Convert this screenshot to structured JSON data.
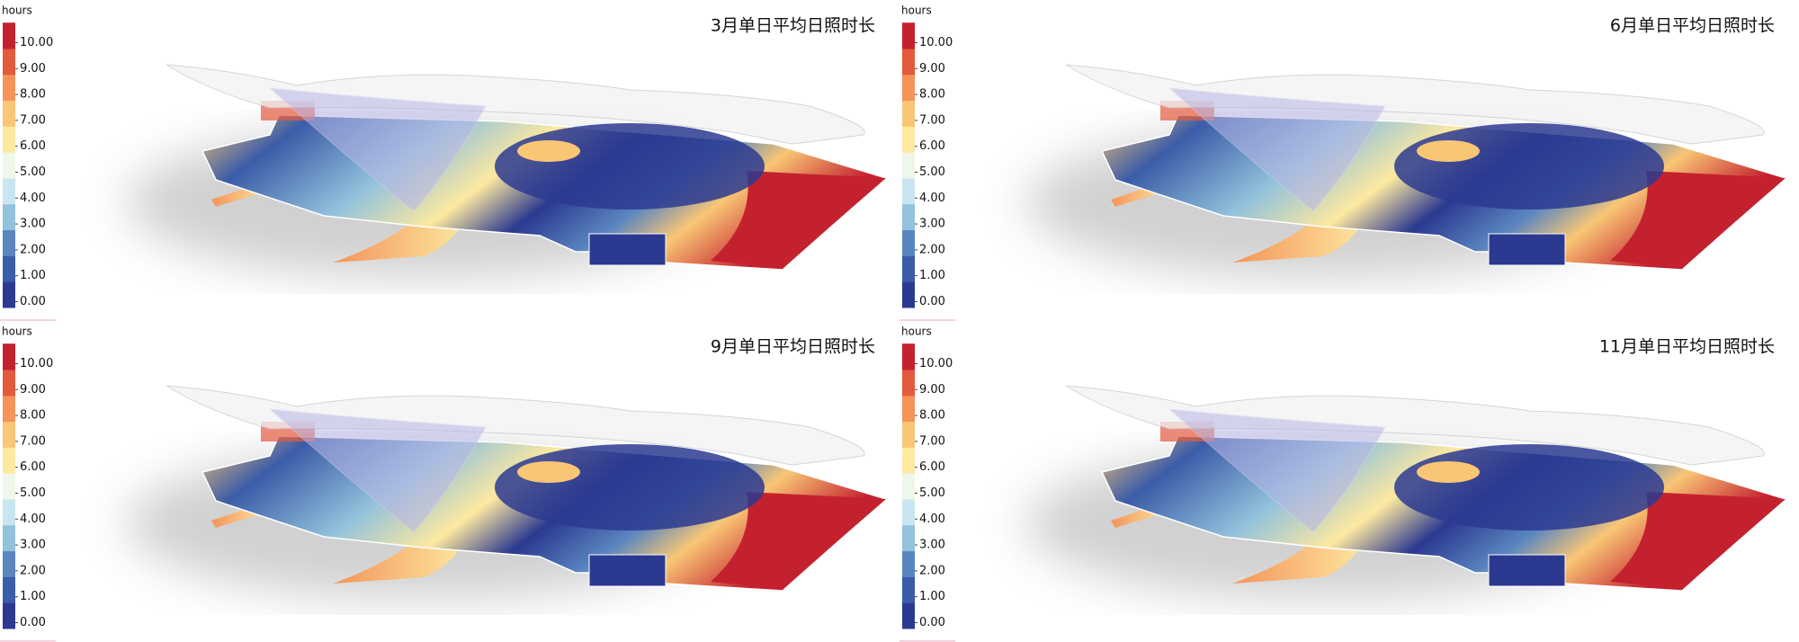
{
  "panels": [
    {
      "title": "3月单日平均日照时长",
      "legend": {
        "unit": "hours",
        "colors": [
          "#2b3990",
          "#3b5ca8",
          "#5a86c0",
          "#92c2dc",
          "#c9e5f0",
          "#eef7ea",
          "#fde9a0",
          "#f9c675",
          "#f4935a",
          "#e35a3e",
          "#c4212f"
        ],
        "ticks": [
          {
            "value": 10,
            "label": "10.00"
          },
          {
            "value": 9,
            "label": "9.00"
          },
          {
            "value": 8,
            "label": "8.00"
          },
          {
            "value": 7,
            "label": "7.00"
          },
          {
            "value": 6,
            "label": "6.00"
          },
          {
            "value": 5,
            "label": "5.00"
          },
          {
            "value": 4,
            "label": "4.00"
          },
          {
            "value": 3,
            "label": "3.00"
          },
          {
            "value": 2,
            "label": "2.00"
          },
          {
            "value": 1,
            "label": "1.00"
          },
          {
            "value": 0,
            "label": "0.00"
          }
        ]
      }
    },
    {
      "title": "6月单日平均日照时长",
      "legend": {
        "unit": "hours",
        "colors": [
          "#2b3990",
          "#3b5ca8",
          "#5a86c0",
          "#92c2dc",
          "#c9e5f0",
          "#eef7ea",
          "#fde9a0",
          "#f9c675",
          "#f4935a",
          "#e35a3e",
          "#c4212f"
        ],
        "ticks": [
          {
            "value": 10,
            "label": "10.00"
          },
          {
            "value": 9,
            "label": "9.00"
          },
          {
            "value": 8,
            "label": "8.00"
          },
          {
            "value": 7,
            "label": "7.00"
          },
          {
            "value": 6,
            "label": "6.00"
          },
          {
            "value": 5,
            "label": "5.00"
          },
          {
            "value": 4,
            "label": "4.00"
          },
          {
            "value": 3,
            "label": "3.00"
          },
          {
            "value": 2,
            "label": "2.00"
          },
          {
            "value": 1,
            "label": "1.00"
          },
          {
            "value": 0,
            "label": "0.00"
          }
        ]
      }
    },
    {
      "title": "9月单日平均日照时长",
      "legend": {
        "unit": "hours",
        "colors": [
          "#2b3990",
          "#3b5ca8",
          "#5a86c0",
          "#92c2dc",
          "#c9e5f0",
          "#eef7ea",
          "#fde9a0",
          "#f9c675",
          "#f4935a",
          "#e35a3e",
          "#c4212f"
        ],
        "ticks": [
          {
            "value": 10,
            "label": "10.00"
          },
          {
            "value": 9,
            "label": "9.00"
          },
          {
            "value": 8,
            "label": "8.00"
          },
          {
            "value": 7,
            "label": "7.00"
          },
          {
            "value": 6,
            "label": "6.00"
          },
          {
            "value": 5,
            "label": "5.00"
          },
          {
            "value": 4,
            "label": "4.00"
          },
          {
            "value": 3,
            "label": "3.00"
          },
          {
            "value": 2,
            "label": "2.00"
          },
          {
            "value": 1,
            "label": "1.00"
          },
          {
            "value": 0,
            "label": "0.00"
          }
        ]
      }
    },
    {
      "title": "11月单日平均日照时长",
      "legend": {
        "unit": "hours",
        "colors": [
          "#2b3990",
          "#3b5ca8",
          "#5a86c0",
          "#92c2dc",
          "#c9e5f0",
          "#eef7ea",
          "#fde9a0",
          "#f9c675",
          "#f4935a",
          "#e35a3e",
          "#c4212f"
        ],
        "ticks": [
          {
            "value": 10,
            "label": "10.00"
          },
          {
            "value": 9,
            "label": "9.00"
          },
          {
            "value": 8,
            "label": "8.00"
          },
          {
            "value": 7,
            "label": "7.00"
          },
          {
            "value": 6,
            "label": "6.00"
          },
          {
            "value": 5,
            "label": "5.00"
          },
          {
            "value": 4,
            "label": "4.00"
          },
          {
            "value": 3,
            "label": "3.00"
          },
          {
            "value": 2,
            "label": "2.00"
          },
          {
            "value": 1,
            "label": "1.00"
          },
          {
            "value": 0,
            "label": "0.00"
          }
        ]
      }
    }
  ]
}
